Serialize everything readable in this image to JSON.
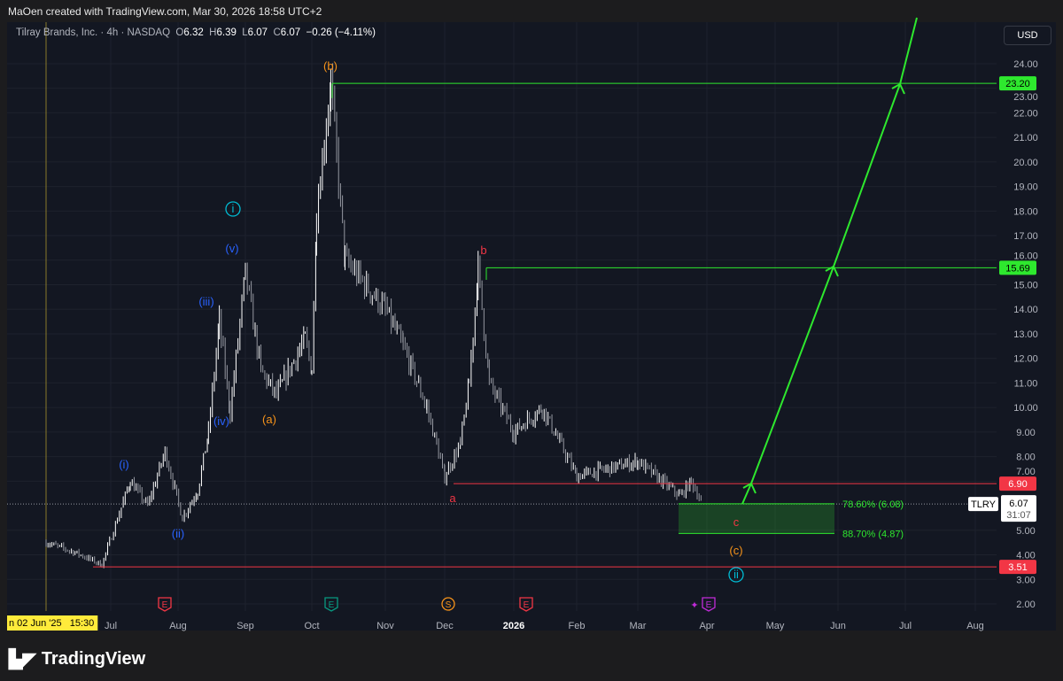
{
  "credit": "MaOen created with TradingView.com, Mar 30, 2026 18:58 UTC+2",
  "legend": {
    "symbol": "Tilray Brands, Inc. · 4h · NASDAQ",
    "open": "6.32",
    "high": "6.39",
    "low": "6.07",
    "close": "6.07",
    "change": "−0.26 (−4.11%)"
  },
  "currency": "USD",
  "ticker": "TLRY",
  "last_price": "6.07",
  "countdown": "31:07",
  "crosshair_label": "n 02 Jun '25   15:30",
  "brand": "TradingView",
  "colors": {
    "bg": "#131722",
    "up": "#ffffff",
    "green": "#2ee82e",
    "red": "#f23645",
    "orange": "#f7931a",
    "blue": "#2962ff",
    "cyan": "#00bcd4"
  },
  "price_ticks": [
    "24.00",
    "23.00",
    "22.00",
    "21.00",
    "20.00",
    "19.00",
    "18.00",
    "17.00",
    "16.00",
    "15.00",
    "14.00",
    "13.00",
    "12.00",
    "11.00",
    "10.00",
    "9.00",
    "8.00",
    "7.00",
    "5.00",
    "4.00",
    "3.00",
    "2.00"
  ],
  "time_ticks": [
    "Jul",
    "Aug",
    "Sep",
    "Oct",
    "Nov",
    "Dec",
    "2026",
    "Feb",
    "Mar",
    "Apr",
    "May",
    "Jun",
    "Jul",
    "Aug"
  ],
  "levels": [
    {
      "value": "23.20",
      "color": "#2ee82e"
    },
    {
      "value": "15.69",
      "color": "#2ee82e"
    },
    {
      "value": "6.90",
      "color": "#f23645"
    },
    {
      "value": "3.51",
      "color": "#f23645"
    }
  ],
  "fib": [
    {
      "label": "78.60% (6.08)",
      "price": 6.08
    },
    {
      "label": "88.70% (4.87)",
      "price": 4.87
    }
  ],
  "wave_labels": [
    {
      "text": "(b)",
      "color": "#f7931a"
    },
    {
      "text": "i",
      "color": "#00bcd4",
      "circle": true
    },
    {
      "text": "(v)",
      "color": "#2962ff"
    },
    {
      "text": "(iii)",
      "color": "#2962ff"
    },
    {
      "text": "(iv)",
      "color": "#2962ff"
    },
    {
      "text": "(a)",
      "color": "#f7931a"
    },
    {
      "text": "(i)",
      "color": "#2962ff"
    },
    {
      "text": "(ii)",
      "color": "#2962ff"
    },
    {
      "text": "b",
      "color": "#f23645"
    },
    {
      "text": "a",
      "color": "#f23645"
    },
    {
      "text": "c",
      "color": "#f23645"
    },
    {
      "text": "(c)",
      "color": "#f7931a"
    },
    {
      "text": "ii",
      "color": "#00bcd4",
      "circle": true
    }
  ],
  "events": [
    {
      "text": "E",
      "type": "earnings",
      "color": "#f23645"
    },
    {
      "text": "E",
      "type": "earnings",
      "color": "#089981"
    },
    {
      "text": "S",
      "type": "split",
      "color": "#f7931a"
    },
    {
      "text": "E",
      "type": "earnings",
      "color": "#f23645"
    },
    {
      "text": "E",
      "type": "earnings",
      "color": "#c02bd8"
    }
  ],
  "chart_data": {
    "type": "candlestick",
    "timeframe": "4h",
    "ylim": [
      2,
      24
    ],
    "path": [
      [
        "2025-06-02",
        4.5
      ],
      [
        "2025-06-15",
        4.1
      ],
      [
        "2025-06-27",
        3.6
      ],
      [
        "2025-07-10",
        7.0
      ],
      [
        "2025-07-18",
        6.0
      ],
      [
        "2025-07-26",
        8.2
      ],
      [
        "2025-08-03",
        5.5
      ],
      [
        "2025-08-10",
        6.6
      ],
      [
        "2025-08-15",
        9.0
      ],
      [
        "2025-08-20",
        13.5
      ],
      [
        "2025-08-25",
        9.8
      ],
      [
        "2025-09-01",
        15.5
      ],
      [
        "2025-09-08",
        11.5
      ],
      [
        "2025-09-15",
        10.5
      ],
      [
        "2025-09-28",
        12.8
      ],
      [
        "2025-10-01",
        11.5
      ],
      [
        "2025-10-03",
        18.0
      ],
      [
        "2025-10-09",
        23.2
      ],
      [
        "2025-10-15",
        16.0
      ],
      [
        "2025-11-01",
        14.0
      ],
      [
        "2025-11-10",
        12.5
      ],
      [
        "2025-11-22",
        10.0
      ],
      [
        "2025-12-01",
        7.2
      ],
      [
        "2025-12-08",
        8.5
      ],
      [
        "2025-12-12",
        11.0
      ],
      [
        "2025-12-16",
        15.69
      ],
      [
        "2025-12-21",
        11.0
      ],
      [
        "2026-01-01",
        9.0
      ],
      [
        "2026-01-15",
        10.0
      ],
      [
        "2026-02-01",
        7.2
      ],
      [
        "2026-03-01",
        7.8
      ],
      [
        "2026-03-20",
        6.4
      ],
      [
        "2026-03-25",
        7.0
      ],
      [
        "2026-03-30",
        6.07
      ]
    ]
  }
}
